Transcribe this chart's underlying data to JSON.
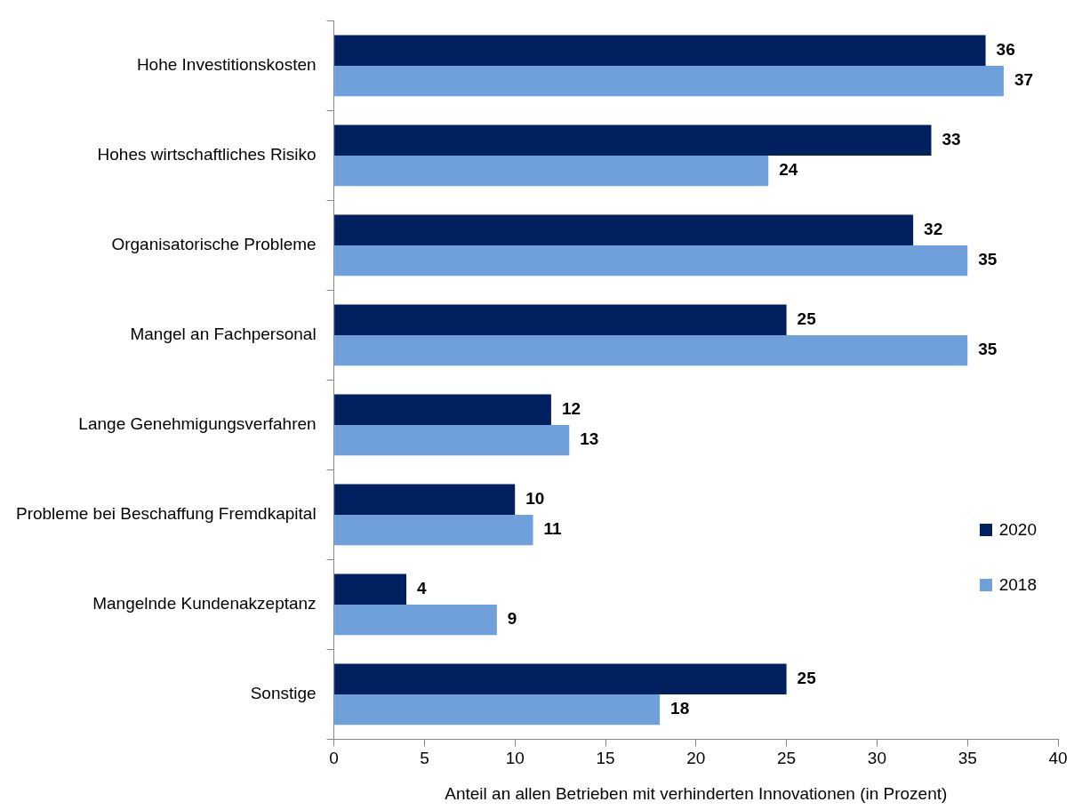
{
  "chart_data": {
    "type": "bar",
    "orientation": "horizontal",
    "xlabel": "Anteil an allen Betrieben mit verhinderten Innovationen (in Prozent)",
    "categories": [
      "Hohe Investitionskosten",
      "Hohes wirtschaftliches Risiko",
      "Organisatorische Probleme",
      "Mangel an Fachpersonal",
      "Lange Genehmigungsverfahren",
      "Probleme bei Beschaffung Fremdkapital",
      "Mangelnde Kundenakzeptanz",
      "Sonstige"
    ],
    "series": [
      {
        "name": "2020",
        "color": "#002060",
        "values": [
          36,
          33,
          32,
          25,
          12,
          10,
          4,
          25
        ]
      },
      {
        "name": "2018",
        "color": "#6fa0dc",
        "values": [
          37,
          24,
          35,
          35,
          13,
          11,
          9,
          18
        ]
      }
    ],
    "xlim": [
      0,
      40
    ],
    "xticks": [
      0,
      5,
      10,
      15,
      20,
      25,
      30,
      35,
      40
    ],
    "grid": false,
    "legend": "right",
    "data_labels": true
  }
}
